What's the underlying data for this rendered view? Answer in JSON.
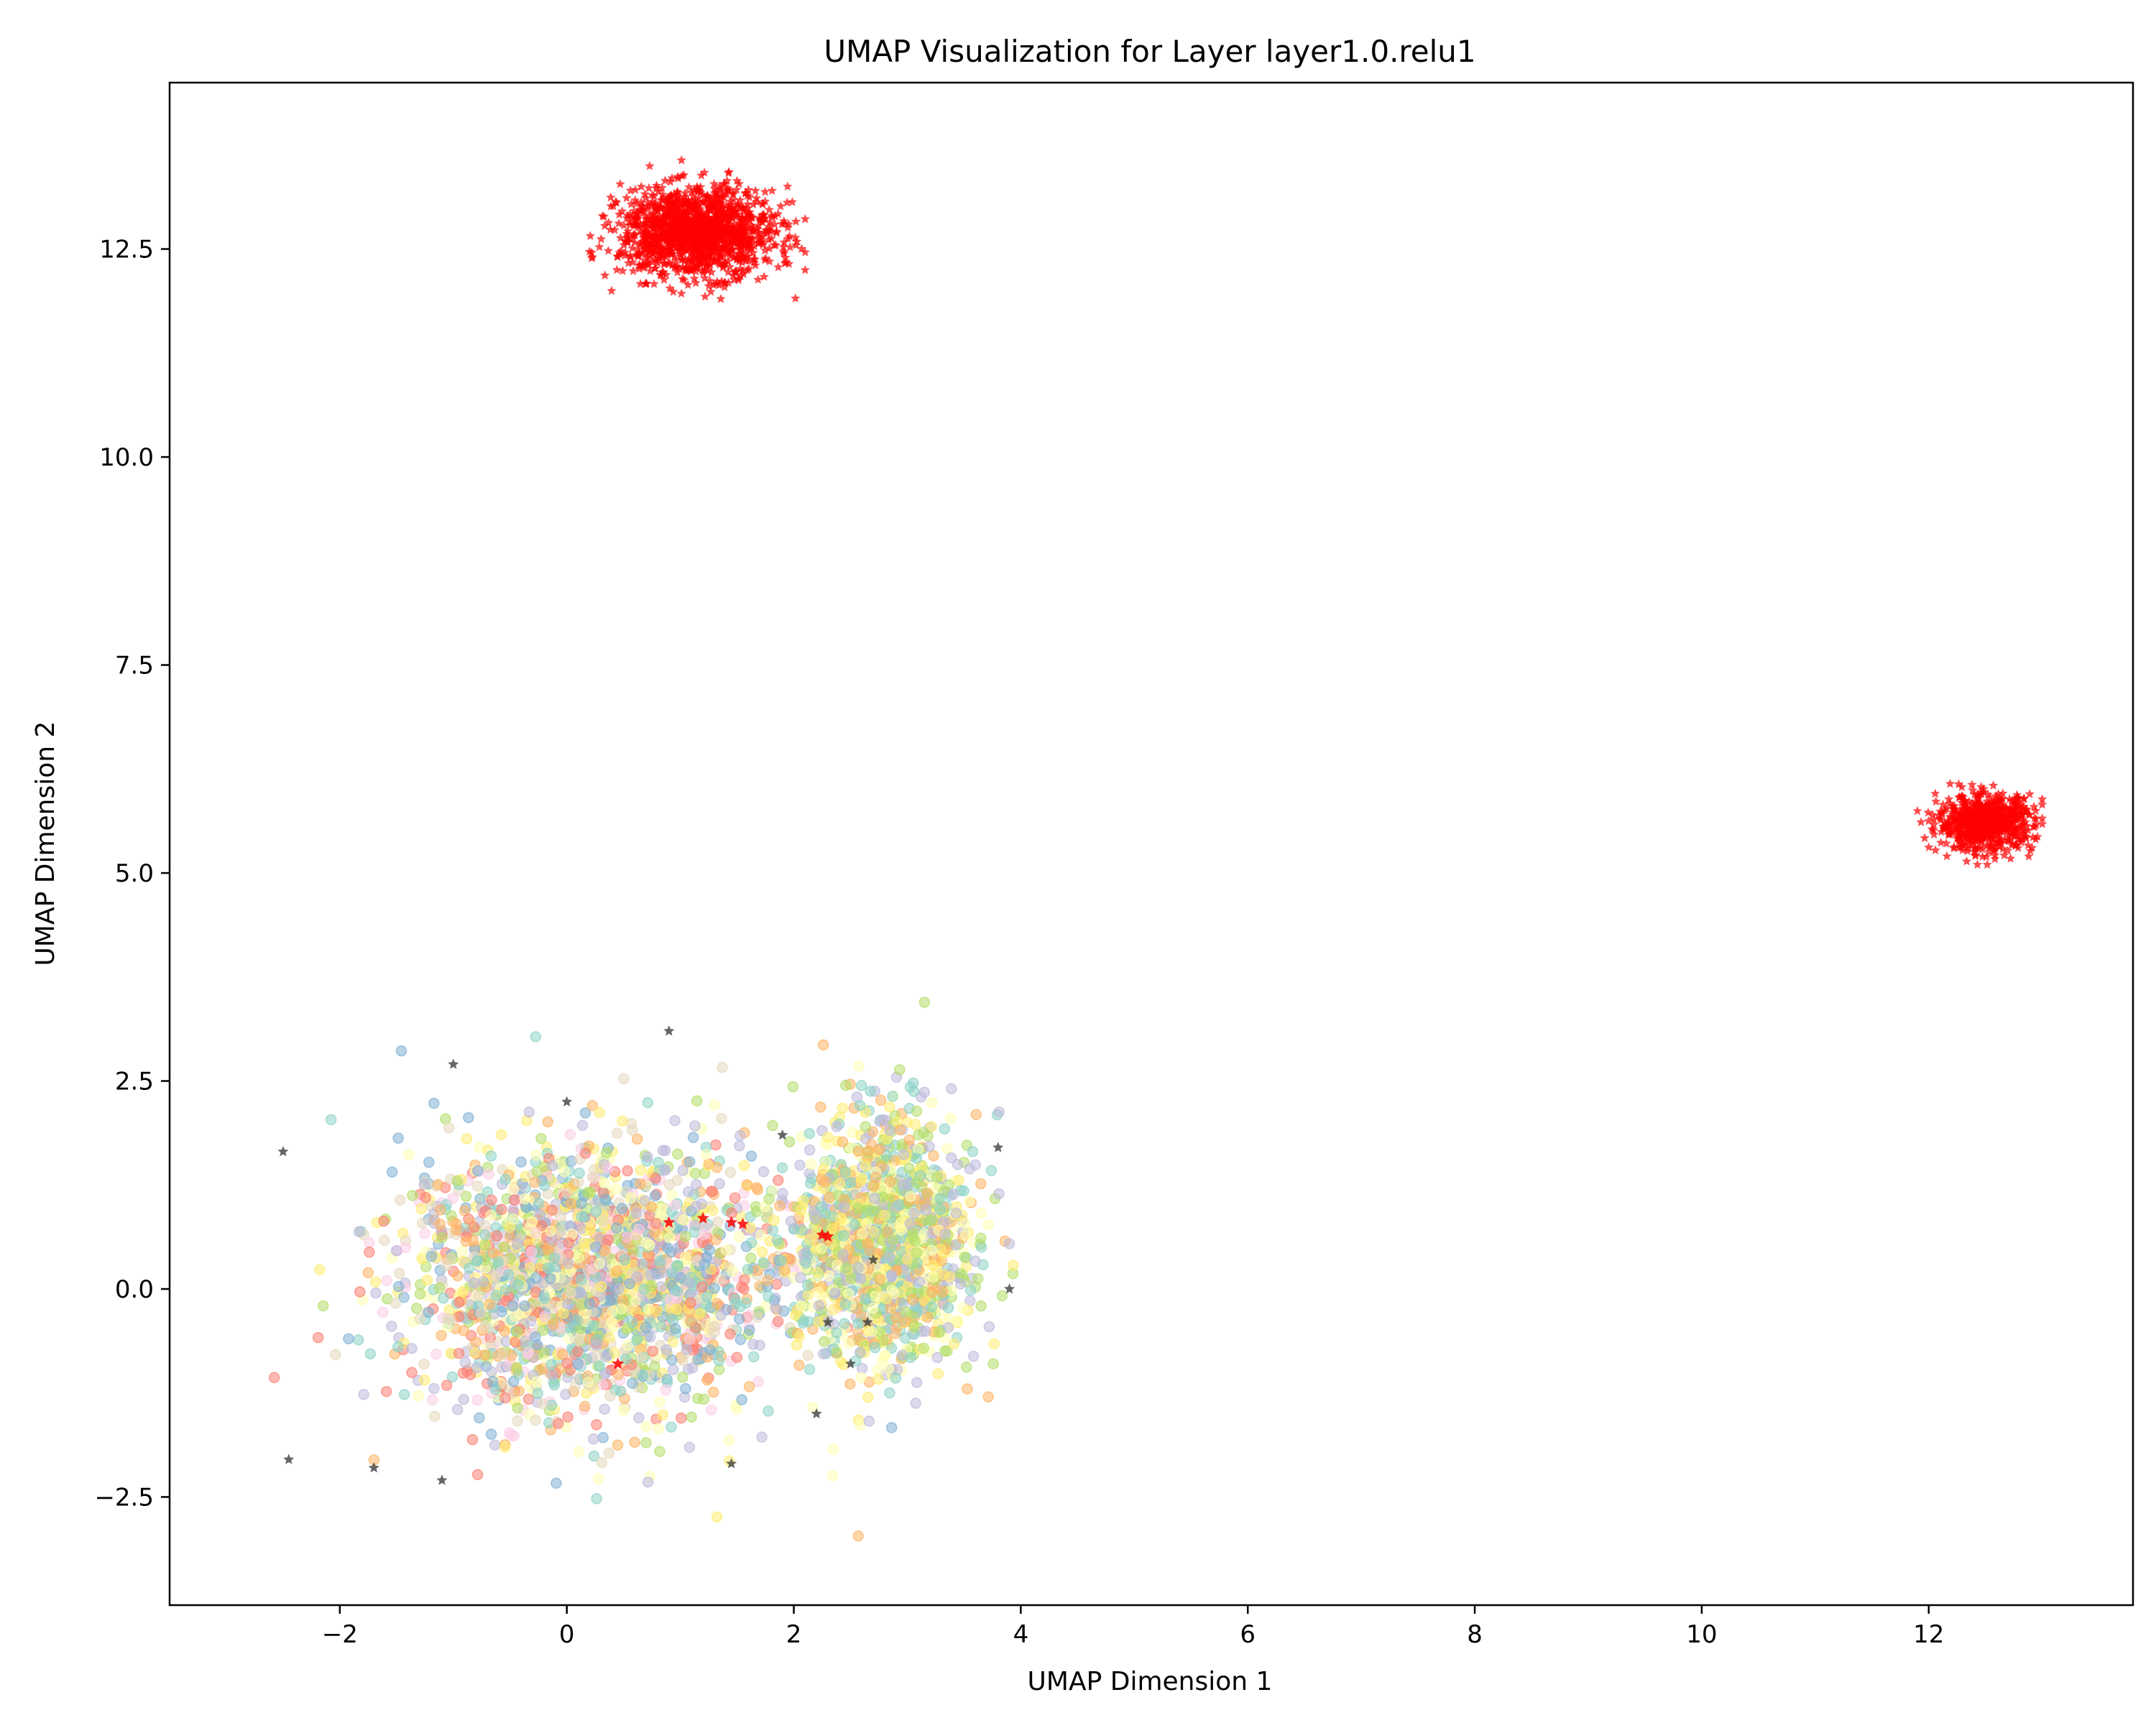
{
  "chart_data": {
    "type": "scatter",
    "title": "UMAP Visualization for Layer layer1.0.relu1",
    "xlabel": "UMAP Dimension 1",
    "ylabel": "UMAP Dimension 2",
    "xlim": [
      -3.5,
      13.8
    ],
    "ylim": [
      -3.8,
      14.5
    ],
    "x_ticks": [
      -2,
      0,
      2,
      4,
      6,
      8,
      10,
      12
    ],
    "x_tick_labels": [
      "−2",
      "0",
      "2",
      "4",
      "6",
      "8",
      "10",
      "12"
    ],
    "y_ticks": [
      -2.5,
      0.0,
      2.5,
      5.0,
      7.5,
      10.0,
      12.5
    ],
    "y_tick_labels": [
      "−2.5",
      "0.0",
      "2.5",
      "5.0",
      "7.5",
      "10.0",
      "12.5"
    ],
    "grid": false,
    "legend": "none",
    "clusters": [
      {
        "marker": "circle",
        "color_palette": [
          "#8dd3c7",
          "#ffffb3",
          "#bebada",
          "#fb8072",
          "#80b1d3",
          "#fdb462",
          "#b3de69",
          "#fccde5",
          "#e5d8bd",
          "#ffed6f"
        ],
        "center": [
          0.2,
          0.1
        ],
        "spread": [
          1.35,
          1.25
        ],
        "approx_range_x": [
          -2.7,
          4.3
        ],
        "approx_range_y": [
          -3.0,
          3.5
        ]
      },
      {
        "marker": "circle",
        "color_palette": [
          "#8dd3c7",
          "#ffffb3",
          "#bebada",
          "#fdb462",
          "#b3de69",
          "#ffed6f"
        ],
        "center": [
          2.8,
          0.6
        ],
        "spread": [
          0.65,
          1.2
        ]
      },
      {
        "marker": "star",
        "color": "#ff0000",
        "center": [
          1.15,
          12.7
        ],
        "spread": [
          0.45,
          0.35
        ],
        "approx_range_x": [
          0.2,
          2.1
        ],
        "approx_range_y": [
          11.9,
          13.6
        ]
      },
      {
        "marker": "star",
        "color": "#ff0000",
        "center": [
          12.5,
          5.6
        ],
        "spread": [
          0.28,
          0.22
        ],
        "approx_range_x": [
          11.9,
          13.0
        ],
        "approx_range_y": [
          5.1,
          6.1
        ]
      }
    ],
    "highlighted_points": {
      "marker": "star",
      "color": "#333333",
      "points": [
        [
          -2.5,
          1.65
        ],
        [
          -1.0,
          2.7
        ],
        [
          -1.7,
          -2.15
        ],
        [
          -2.45,
          -2.05
        ],
        [
          -1.1,
          -2.3
        ],
        [
          0.0,
          2.25
        ],
        [
          0.9,
          3.1
        ],
        [
          1.45,
          -2.1
        ],
        [
          1.9,
          1.85
        ],
        [
          2.3,
          -0.4
        ],
        [
          2.5,
          -0.9
        ],
        [
          2.2,
          -1.5
        ],
        [
          3.8,
          1.7
        ],
        [
          3.9,
          0.0
        ],
        [
          2.7,
          0.35
        ],
        [
          2.65,
          -0.4
        ]
      ]
    },
    "outlier_points": {
      "marker": "star",
      "color": "#ff0000",
      "points": [
        [
          0.9,
          0.8
        ],
        [
          1.2,
          0.85
        ],
        [
          1.45,
          0.8
        ],
        [
          1.55,
          0.78
        ],
        [
          2.25,
          0.65
        ],
        [
          2.3,
          0.63
        ],
        [
          0.45,
          -0.9
        ]
      ]
    }
  }
}
